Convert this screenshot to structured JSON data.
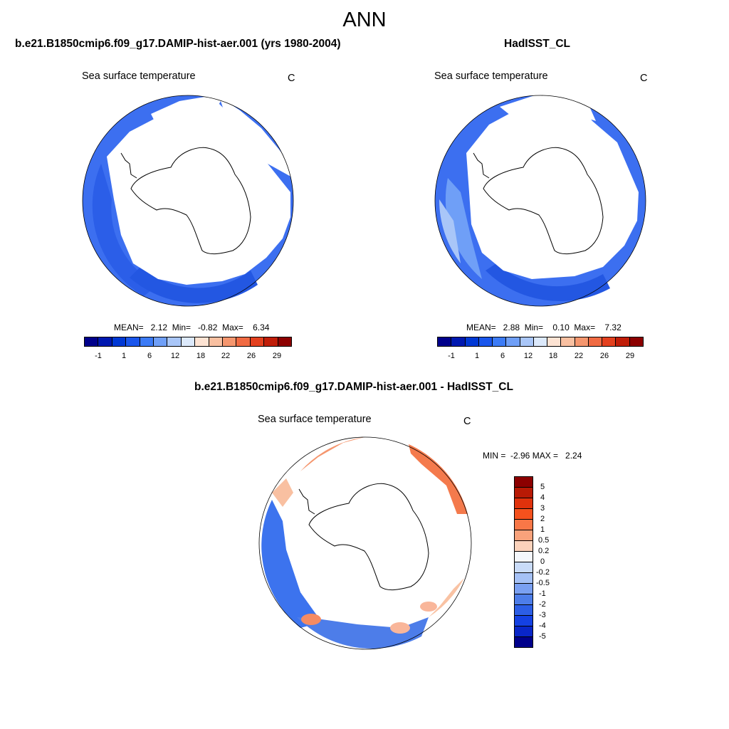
{
  "figure_title": "ANN",
  "panel_left": {
    "title": "b.e21.B1850cmip6.f09_g17.DAMIP-hist-aer.001 (yrs 1980-2004)",
    "variable": "Sea surface temperature",
    "units": "C",
    "stats": "MEAN=   2.12  Min=   -0.82  Max=    6.34"
  },
  "panel_right": {
    "title": "HadISST_CL",
    "variable": "Sea surface temperature",
    "units": "C",
    "stats": "MEAN=   2.88  Min=    0.10  Max=    7.32"
  },
  "panel_diff": {
    "title": "b.e21.B1850cmip6.f09_g17.DAMIP-hist-aer.001 - HadISST_CL",
    "variable": "Sea surface temperature",
    "units": "C",
    "stats": "MIN =  -2.96 MAX =   2.24"
  },
  "colorbar_abs": {
    "colors": [
      "#00008b",
      "#0018b0",
      "#0038d4",
      "#1a56ec",
      "#3c7bf6",
      "#6f9ff7",
      "#a9c6f8",
      "#dce9fb",
      "#fde3d3",
      "#f9c0a1",
      "#f5966e",
      "#f06a42",
      "#e3401e",
      "#c01d08",
      "#8c0000"
    ],
    "tick_labels": [
      "-1",
      "1",
      "6",
      "12",
      "18",
      "22",
      "26",
      "29"
    ]
  },
  "colorbar_diff": {
    "colors": [
      "#8c0000",
      "#b81a05",
      "#e0320c",
      "#f5511d",
      "#f87747",
      "#f9a27b",
      "#fbd2bb",
      "#f4f7fc",
      "#c9dbf8",
      "#a5c1f6",
      "#7aa0f2",
      "#4d7de9",
      "#2c5ee6",
      "#1441e3",
      "#0926c8",
      "#00008b"
    ],
    "tick_labels": [
      "5",
      "4",
      "3",
      "2",
      "1",
      "0.5",
      "0.2",
      "0",
      "-0.2",
      "-0.5",
      "-1",
      "-2",
      "-3",
      "-4",
      "-5"
    ]
  }
}
